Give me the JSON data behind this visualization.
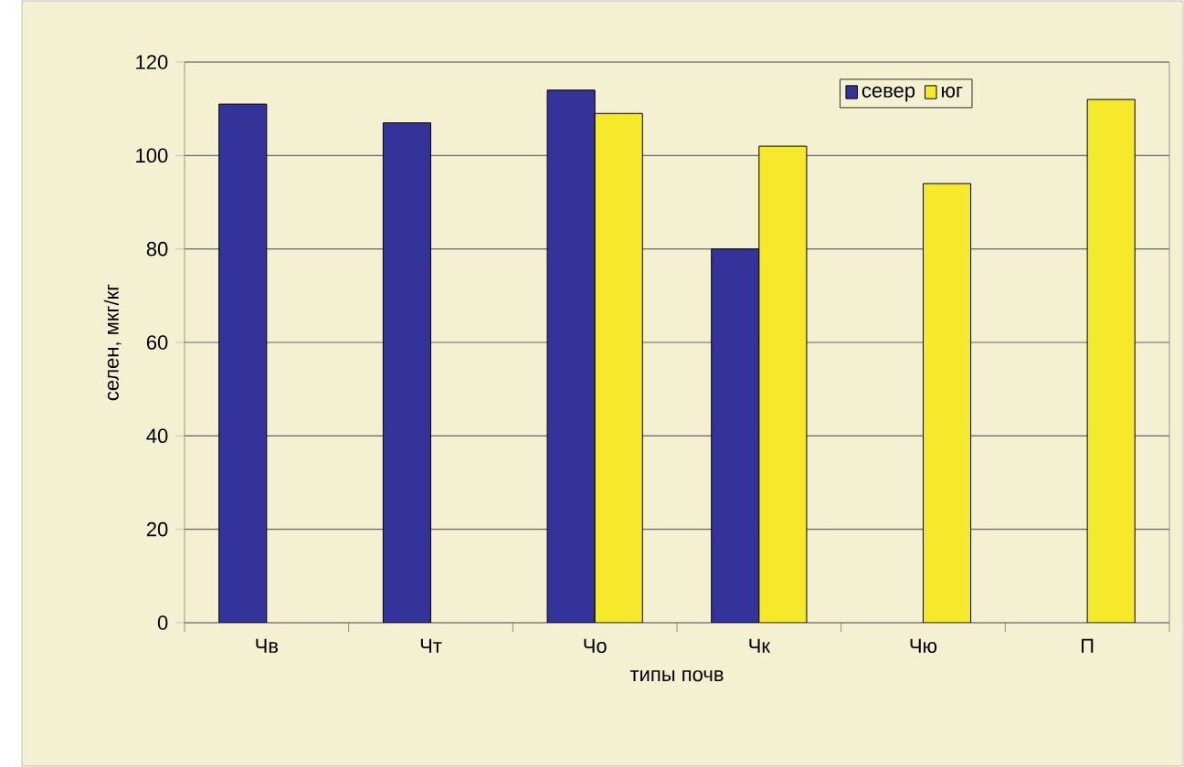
{
  "chart_data": {
    "type": "bar",
    "xlabel": "типы почв",
    "ylabel": "селен, мкг/кг",
    "categories": [
      "Чв",
      "Чт",
      "Чо",
      "Чк",
      "Чю",
      "П"
    ],
    "series": [
      {
        "name": "север",
        "color": "#333399",
        "values": [
          111,
          107,
          114,
          80,
          null,
          null
        ]
      },
      {
        "name": "юг",
        "color": "#f6e92b",
        "values": [
          null,
          null,
          109,
          102,
          94,
          112
        ]
      }
    ],
    "ylim": [
      0,
      120
    ],
    "yticks": [
      0,
      20,
      40,
      60,
      80,
      100,
      120
    ],
    "grid": "y",
    "legend": "top right"
  }
}
